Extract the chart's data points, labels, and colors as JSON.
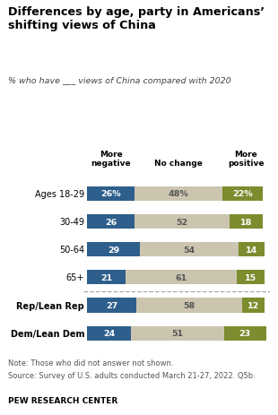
{
  "title": "Differences by age, party in Americans’\nshifting views of China",
  "subtitle": "% who have ___ views of China compared with 2020",
  "categories": [
    "Ages 18-29",
    "30-49",
    "50-64",
    "65+",
    "Rep/Lean Rep",
    "Dem/Lean Dem"
  ],
  "more_negative": [
    26,
    26,
    29,
    21,
    27,
    24
  ],
  "no_change": [
    48,
    52,
    54,
    61,
    58,
    51
  ],
  "more_positive": [
    22,
    18,
    14,
    15,
    12,
    23
  ],
  "color_negative": "#2e5f8c",
  "color_no_change": "#cbc5b0",
  "color_positive": "#7d8c2e",
  "note_line1": "Note: Those who did not answer not shown.",
  "note_line2": "Source: Survey of U.S. adults conducted March 21-27, 2022. Q5b.",
  "footer": "PEW RESEARCH CENTER",
  "header_labels": [
    "More\nnegative",
    "No change",
    "More\npositive"
  ],
  "divider_after_index": 3
}
